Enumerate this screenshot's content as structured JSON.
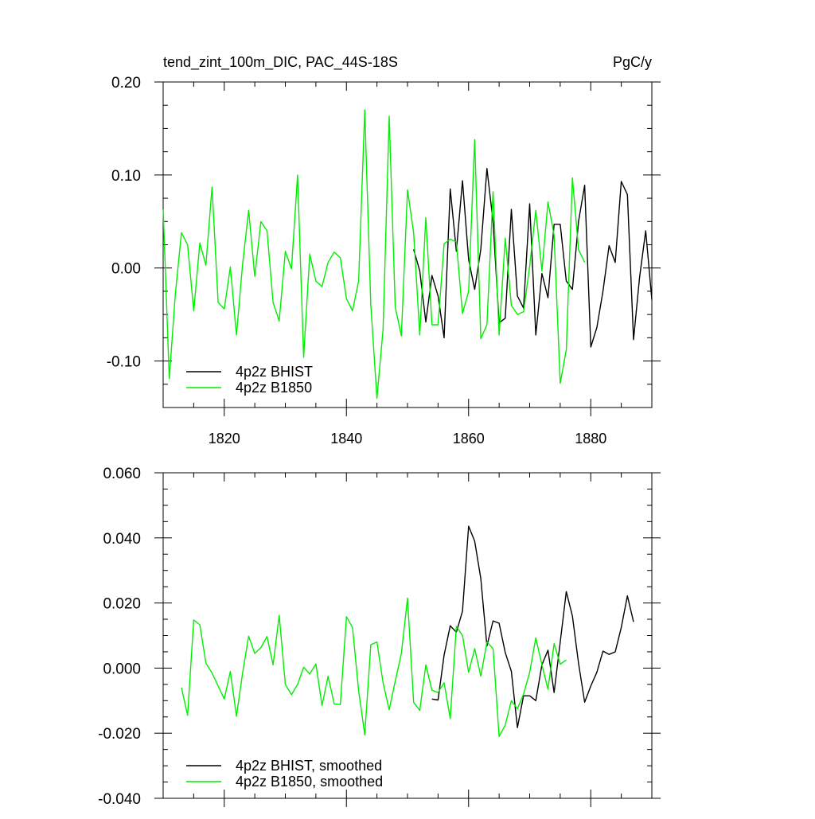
{
  "chart_data": [
    {
      "type": "line",
      "title": "tend_zint_100m_DIC, PAC_44S-18S",
      "units": "PgC/y",
      "xlabel": "",
      "ylabel": "",
      "xlim": [
        1810,
        1890
      ],
      "ylim": [
        -0.15,
        0.2
      ],
      "xticks": [
        1820,
        1840,
        1860,
        1880
      ],
      "xtick_labels": [
        "1820",
        "1840",
        "1860",
        "1880"
      ],
      "yticks": [
        -0.1,
        0.0,
        0.1,
        0.2
      ],
      "ytick_labels": [
        "-0.10",
        "0.00",
        "0.10",
        "0.20"
      ],
      "grid": false,
      "legend_placement": "bottom-left",
      "series": [
        {
          "name": "4p2z BHIST",
          "color": "#000000",
          "x": [
            1851,
            1852,
            1853,
            1854,
            1855,
            1856,
            1857,
            1858,
            1859,
            1860,
            1861,
            1862,
            1863,
            1864,
            1865,
            1866,
            1867,
            1868,
            1869,
            1870,
            1871,
            1872,
            1873,
            1874,
            1875,
            1876,
            1877,
            1878,
            1879,
            1880,
            1881,
            1882,
            1883,
            1884,
            1885,
            1886,
            1887,
            1888,
            1889,
            1890
          ],
          "values": [
            0.02,
            -0.003,
            -0.058,
            -0.008,
            -0.03,
            -0.075,
            0.085,
            0.018,
            0.094,
            0.009,
            -0.023,
            0.02,
            0.107,
            0.05,
            -0.059,
            -0.054,
            0.063,
            -0.03,
            -0.043,
            0.069,
            -0.072,
            -0.006,
            -0.032,
            0.047,
            0.047,
            -0.014,
            -0.023,
            0.05,
            0.089,
            -0.085,
            -0.064,
            -0.025,
            0.024,
            0.006,
            0.093,
            0.079,
            -0.077,
            -0.01,
            0.04,
            -0.034
          ]
        },
        {
          "name": "4p2z B1850",
          "color": "#00ee00",
          "x": [
            1810,
            1811,
            1812,
            1813,
            1814,
            1815,
            1816,
            1817,
            1818,
            1819,
            1820,
            1821,
            1822,
            1823,
            1824,
            1825,
            1826,
            1827,
            1828,
            1829,
            1830,
            1831,
            1832,
            1833,
            1834,
            1835,
            1836,
            1837,
            1838,
            1839,
            1840,
            1841,
            1842,
            1843,
            1844,
            1845,
            1846,
            1847,
            1848,
            1849,
            1850,
            1851,
            1852,
            1853,
            1854,
            1855,
            1856,
            1857,
            1858,
            1859,
            1860,
            1861,
            1862,
            1863,
            1864,
            1865,
            1866,
            1867,
            1868,
            1869,
            1870,
            1871,
            1872,
            1873,
            1874,
            1875,
            1876,
            1877,
            1878,
            1879,
            1880
          ],
          "values": [
            0.063,
            -0.119,
            -0.028,
            0.038,
            0.025,
            -0.046,
            0.027,
            0.003,
            0.087,
            -0.037,
            -0.044,
            0.001,
            -0.072,
            0.004,
            0.062,
            -0.009,
            0.05,
            0.04,
            -0.037,
            -0.057,
            0.018,
            -0.001,
            0.1,
            -0.096,
            0.015,
            -0.014,
            -0.02,
            0.006,
            0.017,
            0.011,
            -0.033,
            -0.046,
            -0.014,
            0.17,
            -0.04,
            -0.14,
            -0.066,
            0.163,
            -0.042,
            -0.073,
            0.084,
            0.038,
            -0.072,
            0.054,
            -0.061,
            -0.061,
            0.026,
            0.031,
            0.028,
            -0.049,
            -0.025,
            0.138,
            -0.076,
            -0.061,
            0.082,
            -0.072,
            0.032,
            -0.04,
            -0.05,
            -0.047,
            0.002,
            0.062,
            -0.003,
            0.071,
            0.035,
            -0.124,
            -0.088,
            0.097,
            0.02,
            0.006,
            null
          ]
        }
      ]
    },
    {
      "type": "line",
      "title": "",
      "xlabel": "",
      "ylabel": "",
      "xlim": [
        1810,
        1890
      ],
      "ylim": [
        -0.04,
        0.06
      ],
      "xticks": [
        1820,
        1840,
        1860,
        1880
      ],
      "yticks": [
        -0.04,
        -0.02,
        0.0,
        0.02,
        0.04,
        0.06
      ],
      "ytick_labels": [
        "-0.040",
        "-0.020",
        "0.000",
        "0.020",
        "0.040",
        "0.060"
      ],
      "grid": false,
      "legend_placement": "bottom-left",
      "series": [
        {
          "name": "4p2z BHIST, smoothed",
          "color": "#000000",
          "x": [
            1854,
            1855,
            1856,
            1857,
            1858,
            1859,
            1860,
            1861,
            1862,
            1863,
            1864,
            1865,
            1866,
            1867,
            1868,
            1869,
            1870,
            1871,
            1872,
            1873,
            1874,
            1875,
            1876,
            1877,
            1878,
            1879,
            1880,
            1881,
            1882,
            1883,
            1884,
            1885,
            1886,
            1887
          ],
          "values": [
            -0.0095,
            -0.0098,
            0.004,
            0.013,
            0.011,
            0.0175,
            0.0436,
            0.039,
            0.0275,
            0.0068,
            0.0145,
            0.0138,
            0.0048,
            -0.001,
            -0.0183,
            -0.0085,
            -0.0085,
            -0.01,
            0.001,
            0.0055,
            -0.0075,
            0.008,
            0.0235,
            0.016,
            0.0015,
            -0.0105,
            -0.0055,
            -0.0013,
            0.0052,
            0.0042,
            0.005,
            0.0125,
            0.0222,
            0.0142
          ]
        },
        {
          "name": "4p2z B1850, smoothed",
          "color": "#00ee00",
          "x": [
            1813,
            1814,
            1815,
            1816,
            1817,
            1818,
            1819,
            1820,
            1821,
            1822,
            1823,
            1824,
            1825,
            1826,
            1827,
            1828,
            1829,
            1830,
            1831,
            1832,
            1833,
            1834,
            1835,
            1836,
            1837,
            1838,
            1839,
            1840,
            1841,
            1842,
            1843,
            1844,
            1845,
            1846,
            1847,
            1848,
            1849,
            1850,
            1851,
            1852,
            1853,
            1854,
            1855,
            1856,
            1857,
            1858,
            1859,
            1860,
            1861,
            1862,
            1863,
            1864,
            1865,
            1866,
            1867,
            1868,
            1869,
            1870,
            1871,
            1872,
            1873,
            1874,
            1875,
            1876,
            1877
          ],
          "values": [
            -0.006,
            -0.0145,
            0.0148,
            0.0133,
            0.0015,
            -0.0015,
            -0.0055,
            -0.0095,
            -0.001,
            -0.0148,
            -0.0015,
            0.0098,
            0.0045,
            0.0063,
            0.0097,
            0.001,
            0.0162,
            -0.005,
            -0.0082,
            -0.005,
            0.0003,
            -0.0018,
            0.0013,
            -0.0115,
            -0.0025,
            -0.011,
            -0.0112,
            0.0158,
            0.0125,
            -0.007,
            -0.0205,
            0.0072,
            0.008,
            -0.0045,
            -0.0128,
            -0.004,
            0.0045,
            0.0215,
            -0.0105,
            -0.013,
            0.001,
            -0.0068,
            -0.0075,
            -0.0045,
            -0.0155,
            0.0128,
            0.01,
            -0.0013,
            0.006,
            -0.0025,
            0.008,
            0.006,
            -0.021,
            -0.0175,
            -0.01,
            -0.0125,
            -0.008,
            -0.0013,
            0.0093,
            0.001,
            -0.0065,
            0.0075,
            0.0012,
            0.0025,
            null
          ]
        }
      ]
    }
  ]
}
